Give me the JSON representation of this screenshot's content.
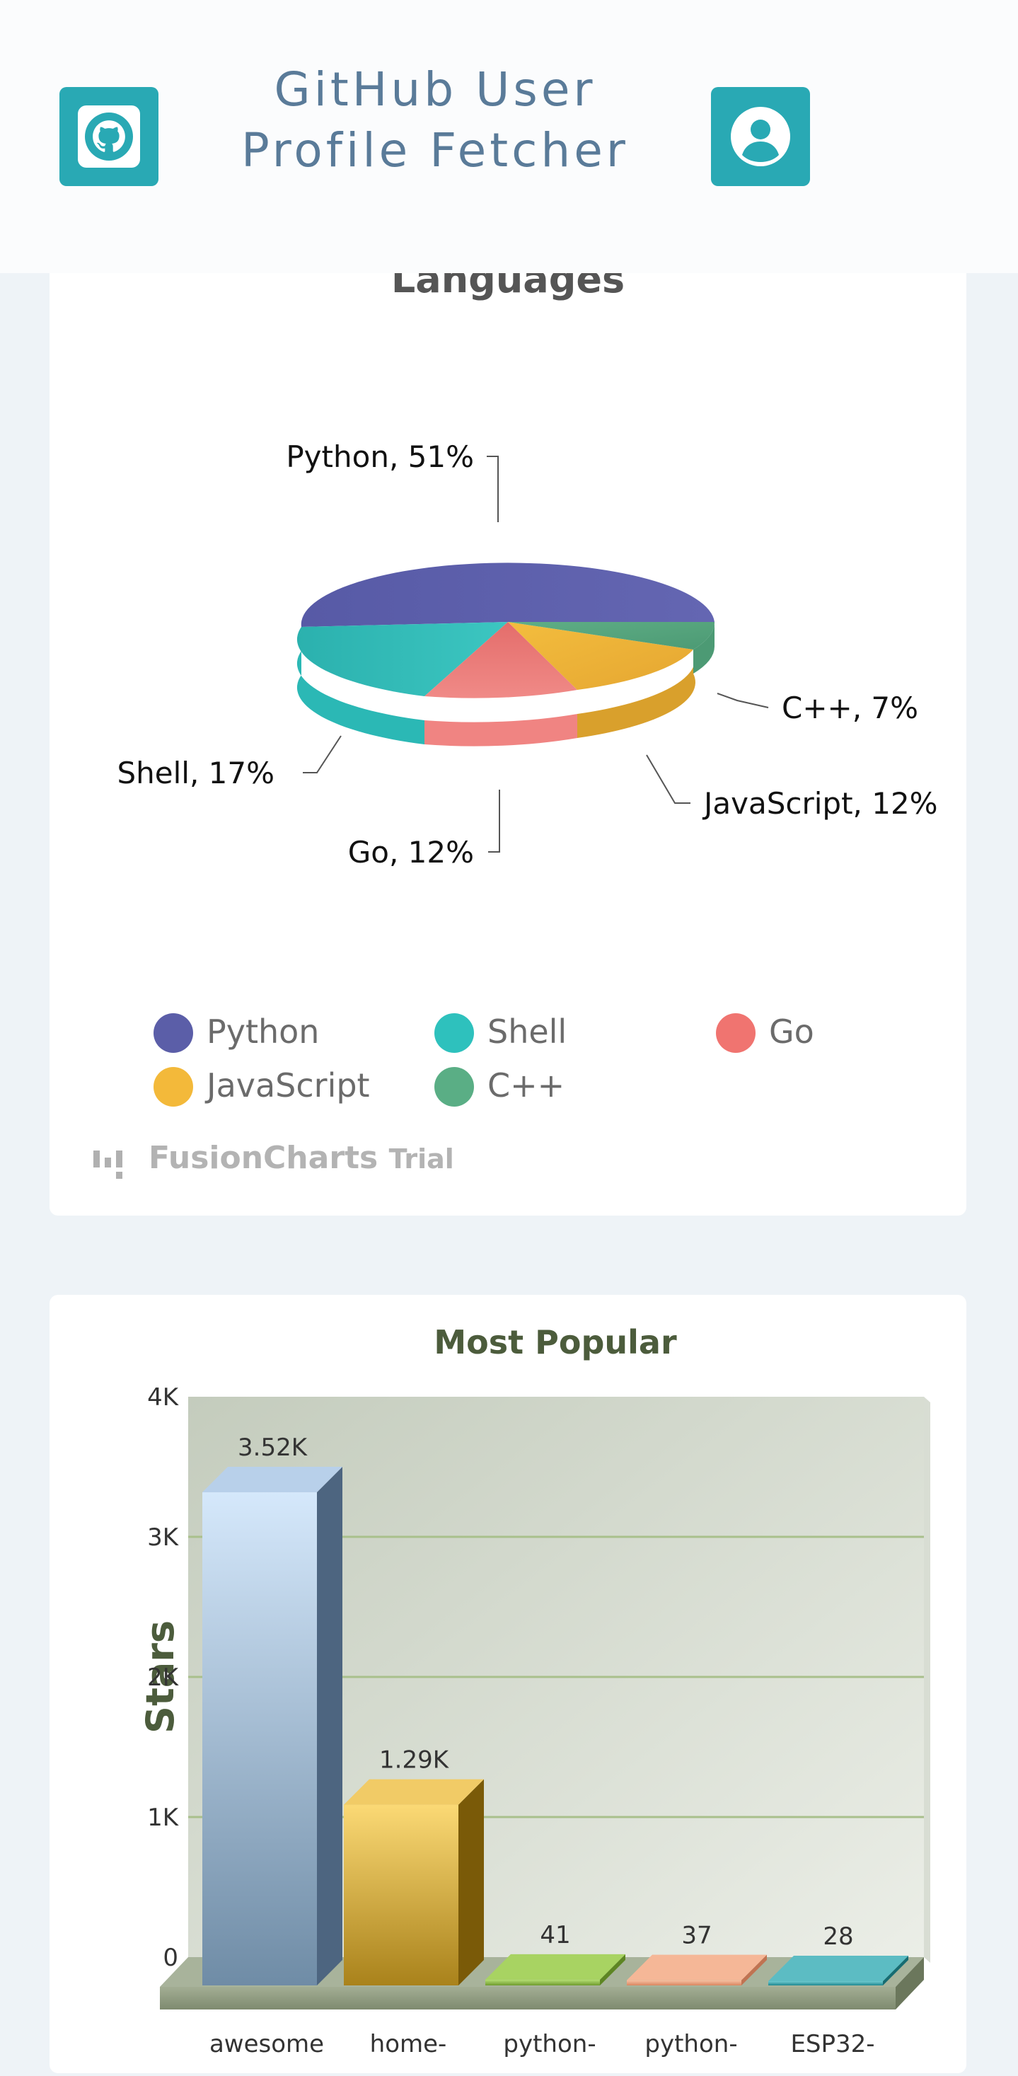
{
  "app": {
    "title_line1": "GitHub User",
    "title_line2": "Profile Fetcher",
    "github_button_icon": "github-icon",
    "profile_button_icon": "user-icon"
  },
  "languages_chart": {
    "title": "Languages",
    "watermark": "FusionCharts",
    "watermark_suffix": "Trial",
    "slice_labels": [
      "Python, 51%",
      "C++, 7%",
      "JavaScript, 12%",
      "Go, 12%",
      "Shell, 17%"
    ],
    "legend": [
      "Python",
      "Shell",
      "Go",
      "JavaScript",
      "C++"
    ]
  },
  "popular_chart": {
    "title": "Most Popular",
    "ylabel": "Stars",
    "y_ticks": [
      "0",
      "1K",
      "2K",
      "3K",
      "4K"
    ],
    "value_labels": [
      "3.52K",
      "1.29K",
      "41",
      "37",
      "28"
    ],
    "category_labels": [
      "awesome",
      "home-",
      "python-",
      "python-",
      "ESP32-"
    ]
  },
  "chart_data": [
    {
      "type": "pie",
      "title": "Languages",
      "categories": [
        "Python",
        "Shell",
        "Go",
        "JavaScript",
        "C++"
      ],
      "values": [
        51,
        17,
        12,
        12,
        7
      ],
      "colors": [
        "#5b5ea8",
        "#2ec1bd",
        "#f07470",
        "#f3b93a",
        "#5aae85"
      ],
      "legend": "bottom"
    },
    {
      "type": "bar",
      "title": "Most Popular",
      "xlabel": "",
      "ylabel": "Stars",
      "categories": [
        "awesome",
        "home-",
        "python-",
        "python-",
        "ESP32-"
      ],
      "values": [
        3520,
        1290,
        41,
        37,
        28
      ],
      "ylim": [
        0,
        4000
      ],
      "grid": true,
      "colors": [
        "#9ab3cc",
        "#e0b443",
        "#8cc04a",
        "#f0a07e",
        "#2aa5ad"
      ]
    }
  ]
}
